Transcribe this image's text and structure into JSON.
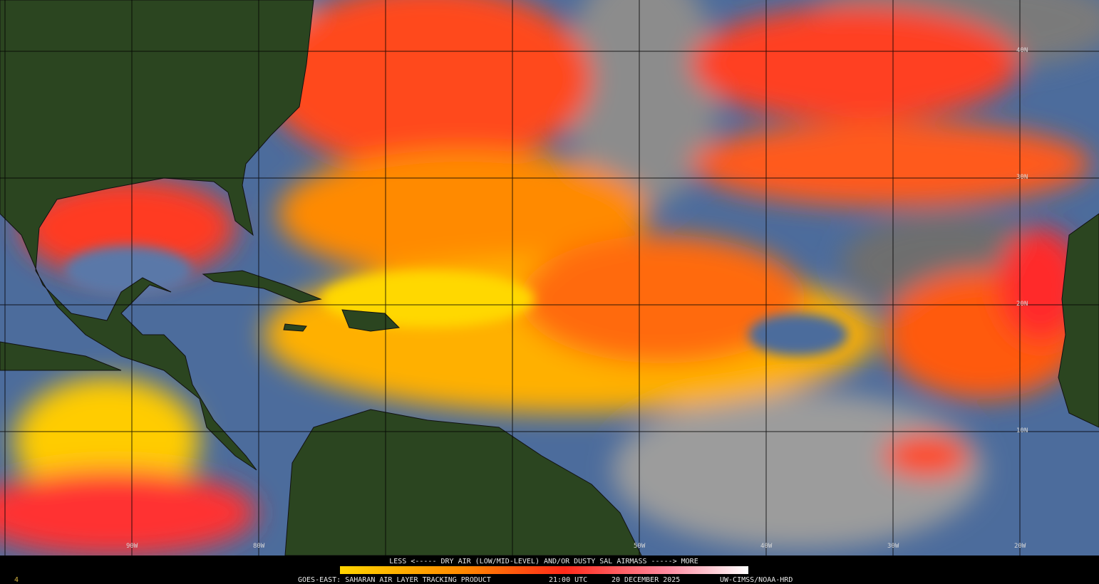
{
  "map": {
    "lat_labels": [
      "40N",
      "30N",
      "20N",
      "10N"
    ],
    "lon_labels": [
      "90W",
      "80W",
      "50W",
      "40W",
      "30W",
      "20W"
    ]
  },
  "legend": {
    "text": "LESS <----- DRY AIR (LOW/MID-LEVEL) AND/OR DUSTY SAL AIRMASS -----> MORE"
  },
  "footer": {
    "frame": "4",
    "product": "GOES-EAST: SAHARAN AIR LAYER TRACKING PRODUCT",
    "time": "21:00 UTC",
    "date": "20 DECEMBER 2025",
    "credit": "UW-CIMSS/NOAA-HRD"
  }
}
